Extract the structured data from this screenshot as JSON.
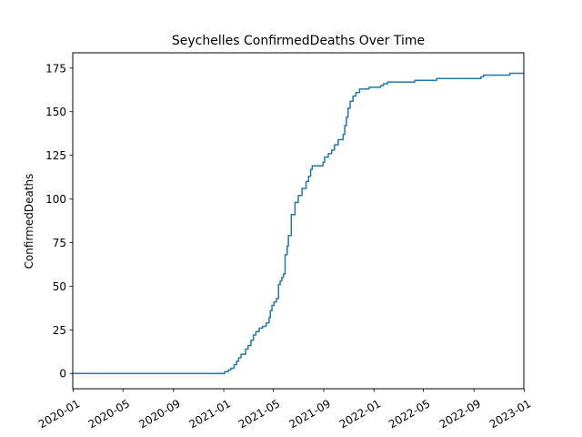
{
  "chart_data": {
    "type": "line",
    "title": "Seychelles  ConfirmedDeaths Over Time",
    "xlabel": "",
    "ylabel": "ConfirmedDeaths",
    "grid": false,
    "legend": "none",
    "color": "#1f77b4",
    "x_start": "2019-12-31",
    "x_end": "2022-12-31",
    "ylim": [
      -8.75,
      183.75
    ],
    "yticks": [
      0,
      25,
      50,
      75,
      100,
      125,
      150,
      175
    ],
    "xticks": [
      {
        "date": "2020-01-01",
        "label": "2020-01"
      },
      {
        "date": "2020-05-01",
        "label": "2020-05"
      },
      {
        "date": "2020-09-01",
        "label": "2020-09"
      },
      {
        "date": "2021-01-01",
        "label": "2021-01"
      },
      {
        "date": "2021-05-01",
        "label": "2021-05"
      },
      {
        "date": "2021-09-01",
        "label": "2021-09"
      },
      {
        "date": "2022-01-01",
        "label": "2022-01"
      },
      {
        "date": "2022-05-01",
        "label": "2022-05"
      },
      {
        "date": "2022-09-01",
        "label": "2022-09"
      },
      {
        "date": "2023-01-01",
        "label": "2023-01"
      }
    ],
    "series": [
      {
        "name": "ConfirmedDeaths",
        "points": [
          [
            "2019-12-31",
            0
          ],
          [
            "2020-12-31",
            0
          ],
          [
            "2021-01-03",
            1
          ],
          [
            "2021-01-12",
            2
          ],
          [
            "2021-01-18",
            3
          ],
          [
            "2021-01-26",
            5
          ],
          [
            "2021-02-01",
            7
          ],
          [
            "2021-02-06",
            9
          ],
          [
            "2021-02-12",
            11
          ],
          [
            "2021-02-23",
            14
          ],
          [
            "2021-03-01",
            16
          ],
          [
            "2021-03-08",
            19
          ],
          [
            "2021-03-14",
            22
          ],
          [
            "2021-03-20",
            24
          ],
          [
            "2021-03-28",
            26
          ],
          [
            "2021-04-05",
            27
          ],
          [
            "2021-04-14",
            29
          ],
          [
            "2021-04-21",
            32
          ],
          [
            "2021-04-24",
            36
          ],
          [
            "2021-04-28",
            39
          ],
          [
            "2021-05-03",
            41
          ],
          [
            "2021-05-09",
            43
          ],
          [
            "2021-05-14",
            51
          ],
          [
            "2021-05-18",
            53
          ],
          [
            "2021-05-22",
            55
          ],
          [
            "2021-05-26",
            57
          ],
          [
            "2021-05-30",
            68
          ],
          [
            "2021-06-04",
            73
          ],
          [
            "2021-06-07",
            79
          ],
          [
            "2021-06-14",
            91
          ],
          [
            "2021-06-23",
            98
          ],
          [
            "2021-07-01",
            102
          ],
          [
            "2021-07-10",
            106
          ],
          [
            "2021-07-20",
            110
          ],
          [
            "2021-07-26",
            113
          ],
          [
            "2021-07-31",
            117
          ],
          [
            "2021-08-04",
            119
          ],
          [
            "2021-08-30",
            121
          ],
          [
            "2021-09-03",
            124
          ],
          [
            "2021-09-12",
            126
          ],
          [
            "2021-09-20",
            128
          ],
          [
            "2021-09-27",
            131
          ],
          [
            "2021-10-06",
            134
          ],
          [
            "2021-10-18",
            137
          ],
          [
            "2021-10-22",
            142
          ],
          [
            "2021-10-26",
            147
          ],
          [
            "2021-10-30",
            152
          ],
          [
            "2021-11-04",
            156
          ],
          [
            "2021-11-11",
            159
          ],
          [
            "2021-11-18",
            161
          ],
          [
            "2021-11-27",
            163
          ],
          [
            "2021-12-20",
            164
          ],
          [
            "2022-01-17",
            165
          ],
          [
            "2022-01-24",
            166
          ],
          [
            "2022-02-03",
            167
          ],
          [
            "2022-04-10",
            168
          ],
          [
            "2022-06-02",
            169
          ],
          [
            "2022-09-18",
            170
          ],
          [
            "2022-09-24",
            171
          ],
          [
            "2022-11-27",
            172
          ],
          [
            "2022-12-31",
            172
          ]
        ]
      }
    ]
  }
}
